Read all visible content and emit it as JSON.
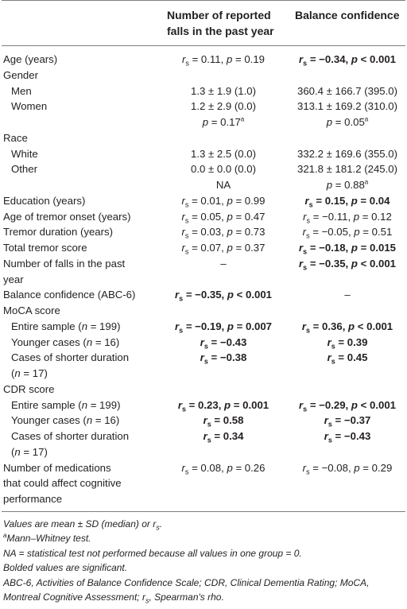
{
  "header": {
    "col2_line1": "Number of reported",
    "col2_line2": "falls in the past year",
    "col3": "Balance confidence"
  },
  "rows": [
    {
      "label": "Age (years)",
      "c2": "rs = 0.11, p = 0.19",
      "c3": "rs = −0.34, p < 0.001",
      "b3": true
    },
    {
      "label": "Gender"
    },
    {
      "label": "Men",
      "c2": "1.3 ± 1.9 (1.0)",
      "c3": "360.4 ± 166.7 (395.0)"
    },
    {
      "label": "Women",
      "c2": "1.2 ± 2.9 (0.0)",
      "c3": "313.1 ± 169.2 (310.0)"
    },
    {
      "label": "",
      "c2": "p = 0.17a",
      "c3": "p = 0.05a"
    },
    {
      "label": "Race"
    },
    {
      "label": "White",
      "c2": "1.3 ± 2.5 (0.0)",
      "c3": "332.2 ± 169.6 (355.0)"
    },
    {
      "label": "Other",
      "c2": "0.0 ± 0.0 (0.0)",
      "c3": "321.8 ± 181.2 (245.0)"
    },
    {
      "label": "",
      "c2": "NA",
      "c3": "p = 0.88a"
    },
    {
      "label": "Education (years)",
      "c2": "rs = 0.01, p = 0.99",
      "c3": "rs = 0.15, p = 0.04",
      "b3": true
    },
    {
      "label": "Age of tremor onset (years)",
      "c2": "rs = 0.05, p = 0.47",
      "c3": "rs = −0.11, p = 0.12"
    },
    {
      "label": "Tremor duration (years)",
      "c2": "rs = 0.03, p = 0.73",
      "c3": "rs = −0.05, p = 0.51"
    },
    {
      "label": "Total tremor score",
      "c2": "rs = 0.07, p = 0.37",
      "c3": "rs = −0.18, p = 0.015",
      "b3": true
    },
    {
      "label": "Number of falls in the past",
      "c2": "–",
      "c3": "rs = −0.35, p < 0.001",
      "b3": true
    },
    {
      "label": "year"
    },
    {
      "label": "Balance confidence (ABC-6)",
      "c2": "rs = −0.35, p < 0.001",
      "c3": "–",
      "b2": true
    },
    {
      "label": "MoCA score"
    },
    {
      "label": "Entire sample (n = 199)",
      "c2": "rs = −0.19, p = 0.007",
      "c3": "rs = 0.36, p < 0.001",
      "b2": true,
      "b3": true
    },
    {
      "label": "Younger cases (n = 16)",
      "c2": "rs = −0.43",
      "c3": "rs = 0.39",
      "b2": true,
      "b3": true
    },
    {
      "label": "Cases of shorter duration",
      "c2": "rs = −0.38",
      "c3": "rs = 0.45",
      "b2": true,
      "b3": true
    },
    {
      "label": "(n = 17)"
    },
    {
      "label": "CDR score"
    },
    {
      "label": "Entire sample (n = 199)",
      "c2": "rs = 0.23, p = 0.001",
      "c3": "rs = −0.29, p < 0.001",
      "b2": true,
      "b3": true
    },
    {
      "label": "Younger cases (n = 16)",
      "c2": "rs = 0.58",
      "c3": "rs = −0.37",
      "b2": true,
      "b3": true
    },
    {
      "label": "Cases of shorter duration",
      "c2": "rs = 0.34",
      "c3": "rs = −0.43",
      "b2": true,
      "b3": true
    },
    {
      "label": "(n = 17)"
    },
    {
      "label": "Number of medications",
      "c2": "rs = 0.08, p = 0.26",
      "c3": "rs = −0.08, p = 0.29"
    },
    {
      "label": "that could affect cognitive"
    },
    {
      "label": "performance"
    }
  ],
  "notes": [
    "Values are mean ± SD (median) or rs.",
    "aMann–Whitney test.",
    "NA = statistical test not performed because all values in one group = 0.",
    "Bolded values are significant.",
    "ABC-6, Activities of Balance Confidence Scale; CDR, Clinical Dementia Rating; MoCA,",
    "Montreal Cognitive Assessment; rs, Spearman's rho."
  ]
}
